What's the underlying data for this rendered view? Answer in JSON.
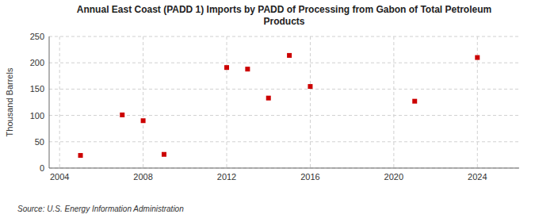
{
  "chart_data": {
    "type": "scatter",
    "title": "Annual East Coast (PADD 1) Imports by PADD of Processing from Gabon of Total Petroleum\nProducts",
    "y_label": "Thousand Barrels",
    "source": "Source: U.S. Energy Information Administration",
    "x": [
      2005,
      2007,
      2008,
      2009,
      2012,
      2013,
      2014,
      2015,
      2016,
      2021,
      2024
    ],
    "values": [
      24,
      101,
      90,
      26,
      191,
      188,
      133,
      214,
      155,
      127,
      210
    ],
    "color": "#cc0000",
    "marker": "square",
    "xlim": [
      2003.5,
      2026
    ],
    "ylim": [
      0,
      250
    ],
    "xticks": [
      2004,
      2008,
      2012,
      2016,
      2020,
      2024
    ],
    "yticks": [
      0,
      50,
      100,
      150,
      200,
      250
    ],
    "grid": true
  }
}
